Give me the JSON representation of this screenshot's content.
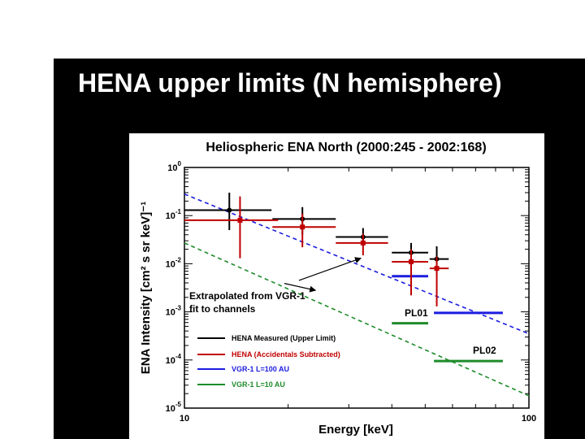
{
  "slide": {
    "title": "HENA upper limits (N hemisphere)"
  },
  "colors": {
    "background": "#000000",
    "title": "#ffffff",
    "chart_bg": "#ffffff"
  },
  "chart_data": {
    "type": "scatter",
    "title": "Heliospheric ENA North (2000:245 - 2002:168)",
    "xlabel": "Energy [keV]",
    "ylabel": "ENA Intensity [cm² s sr keV]⁻¹",
    "xscale": "log",
    "yscale": "log",
    "xlim": [
      10,
      100
    ],
    "ylim": [
      1e-05,
      1
    ],
    "x_ticks": [
      {
        "value": 10,
        "label": "10"
      },
      {
        "value": 100,
        "label": "100"
      }
    ],
    "y_ticks": [
      {
        "value": 1,
        "base": "10",
        "exp": "0"
      },
      {
        "value": 0.1,
        "base": "10",
        "exp": "-1"
      },
      {
        "value": 0.01,
        "base": "10",
        "exp": "-2"
      },
      {
        "value": 0.001,
        "base": "10",
        "exp": "-3"
      },
      {
        "value": 0.0001,
        "base": "10",
        "exp": "-4"
      },
      {
        "value": 1e-05,
        "base": "10",
        "exp": "-5"
      }
    ],
    "series": [
      {
        "name": "HENA Measured (Upper Limit)",
        "color": "#000000",
        "points": [
          {
            "x": 13.5,
            "y": 0.13,
            "xmin": 10,
            "xmax": 17.9,
            "ymin": 0.05,
            "ymax": 0.3
          },
          {
            "x": 22.0,
            "y": 0.085,
            "xmin": 18.0,
            "xmax": 27.5,
            "ymin": 0.04,
            "ymax": 0.15
          },
          {
            "x": 33.0,
            "y": 0.036,
            "xmin": 27.5,
            "xmax": 39.0,
            "ymin": 0.025,
            "ymax": 0.055
          },
          {
            "x": 45.5,
            "y": 0.017,
            "xmin": 40.0,
            "xmax": 51.0,
            "ymin": 0.007,
            "ymax": 0.027
          },
          {
            "x": 54.0,
            "y": 0.0125,
            "xmin": 51.5,
            "xmax": 58.5,
            "ymin": 0.006,
            "ymax": 0.023
          }
        ]
      },
      {
        "name": "HENA (Accidentals Subtracted)",
        "color": "#c00000",
        "points": [
          {
            "x": 14.5,
            "y": 0.08,
            "xmin": 10,
            "xmax": 18.7,
            "ymin": 0.013,
            "ymax": 0.25
          },
          {
            "x": 22.0,
            "y": 0.058,
            "xmin": 18.0,
            "xmax": 27.5,
            "ymin": 0.022,
            "ymax": 0.11
          },
          {
            "x": 33.0,
            "y": 0.027,
            "xmin": 27.5,
            "xmax": 39.0,
            "ymin": 0.015,
            "ymax": 0.042
          },
          {
            "x": 45.5,
            "y": 0.011,
            "xmin": 40.0,
            "xmax": 51.0,
            "ymin": 0.0022,
            "ymax": 0.02
          },
          {
            "x": 54.0,
            "y": 0.008,
            "xmin": 51.5,
            "xmax": 58.5,
            "ymin": 0.0013,
            "ymax": 0.014
          }
        ]
      }
    ],
    "fit_lines": [
      {
        "name": "VGR-1 L=100 AU",
        "color": "#1c1ce0",
        "dash": true,
        "points": [
          [
            10,
            0.28
          ],
          [
            100,
            0.00035
          ]
        ]
      },
      {
        "name": "VGR-1 L=10 AU",
        "color": "#1e8c2a",
        "dash": true,
        "points": [
          [
            10,
            0.027
          ],
          [
            100,
            1.8e-05
          ]
        ]
      }
    ],
    "level_bars": [
      {
        "series": "VGR-1 L=100 AU",
        "color": "#1c1ce0",
        "xmin": 40.0,
        "xmax": 51.0,
        "y": 0.0055
      },
      {
        "series": "VGR-1 L=100 AU",
        "color": "#1c1ce0",
        "xmin": 53.0,
        "xmax": 84.0,
        "y": 0.00095
      },
      {
        "series": "VGR-1 L=10 AU",
        "color": "#1e8c2a",
        "xmin": 40.0,
        "xmax": 51.0,
        "y": 0.00058
      },
      {
        "series": "VGR-1 L=10 AU",
        "color": "#1e8c2a",
        "xmin": 53.0,
        "xmax": 84.0,
        "y": 9.5e-05
      }
    ],
    "annotations": {
      "extrapolation_lines": [
        "Extrapolated from VGR-1",
        "fit to channels"
      ],
      "arrow_targets": [
        [
          24,
          0.0028
        ],
        [
          32.5,
          0.013
        ]
      ],
      "arrow_origins": [
        [
          19.5,
          0.0039
        ],
        [
          21.5,
          0.0045
        ]
      ],
      "labels": [
        {
          "text": "PL01",
          "x": 44.5,
          "y": 0.0009
        },
        {
          "text": "PL02",
          "x": 62.5,
          "y": 0.00015
        }
      ]
    },
    "legend": {
      "position": "bottom-left",
      "entries": [
        {
          "label": "HENA Measured (Upper Limit)",
          "color": "#000000"
        },
        {
          "label": "HENA (Accidentals Subtracted)",
          "color": "#c00000"
        },
        {
          "label": "VGR-1 L=100 AU",
          "color": "#1c1ce0"
        },
        {
          "label": "VGR-1 L=10 AU",
          "color": "#1e8c2a"
        }
      ]
    }
  }
}
